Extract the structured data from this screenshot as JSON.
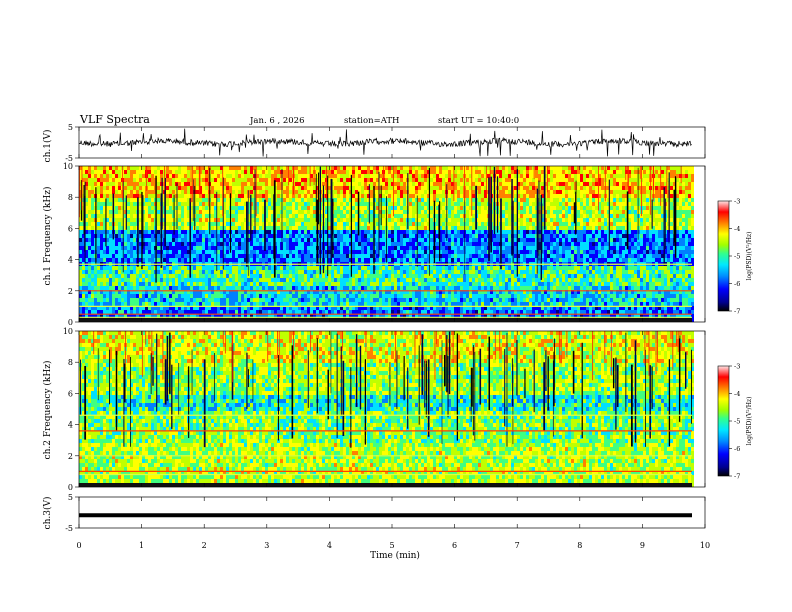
{
  "header": {
    "title": "VLF Spectra",
    "date": "Jan. 6 , 2026",
    "station": "station=ATH",
    "start": "start UT = 10:40:0"
  },
  "chart_data": [
    {
      "type": "line",
      "panel": "ch1-waveform",
      "ylabel": "ch.1(V)",
      "ylim": [
        -5,
        5
      ],
      "yticks": [
        "5",
        "-5"
      ],
      "xlim": [
        0,
        10
      ]
    },
    {
      "type": "heatmap",
      "panel": "ch1-spectrogram",
      "ylabel": "ch.1 Frequency (kHz)",
      "ylim": [
        0,
        10
      ],
      "yticks": [
        "0",
        "2",
        "4",
        "6",
        "8",
        "10"
      ],
      "xlim": [
        0,
        10
      ],
      "colorbar": {
        "label": "log(PSD)(V²/Hz)",
        "range": [
          -7,
          -3
        ],
        "ticks": [
          "-3",
          "-4",
          "-5",
          "-6",
          "-7"
        ]
      }
    },
    {
      "type": "heatmap",
      "panel": "ch2-spectrogram",
      "ylabel": "ch.2 Frequency (kHz)",
      "ylim": [
        0,
        10
      ],
      "yticks": [
        "0",
        "2",
        "4",
        "6",
        "8",
        "10"
      ],
      "xlim": [
        0,
        10
      ],
      "colorbar": {
        "label": "log(PSD)(V²/Hz)",
        "range": [
          -7,
          -3
        ],
        "ticks": [
          "-3",
          "-4",
          "-5",
          "-6",
          "-7"
        ]
      }
    },
    {
      "type": "line",
      "panel": "ch3-waveform",
      "ylabel": "ch.3(V)",
      "ylim": [
        -5,
        5
      ],
      "yticks": [
        "5",
        "-5"
      ],
      "xlim": [
        0,
        10
      ],
      "xlabel": "Time (min)",
      "xticks": [
        "0",
        "1",
        "2",
        "3",
        "4",
        "5",
        "6",
        "7",
        "8",
        "9",
        "10"
      ]
    }
  ],
  "colors": {
    "colormap": [
      "#000080",
      "#0000ff",
      "#0080ff",
      "#00e0ff",
      "#40ff80",
      "#c0ff00",
      "#ffff00",
      "#ff8000",
      "#ff0000",
      "#ffc0c0",
      "#ffffff"
    ]
  }
}
